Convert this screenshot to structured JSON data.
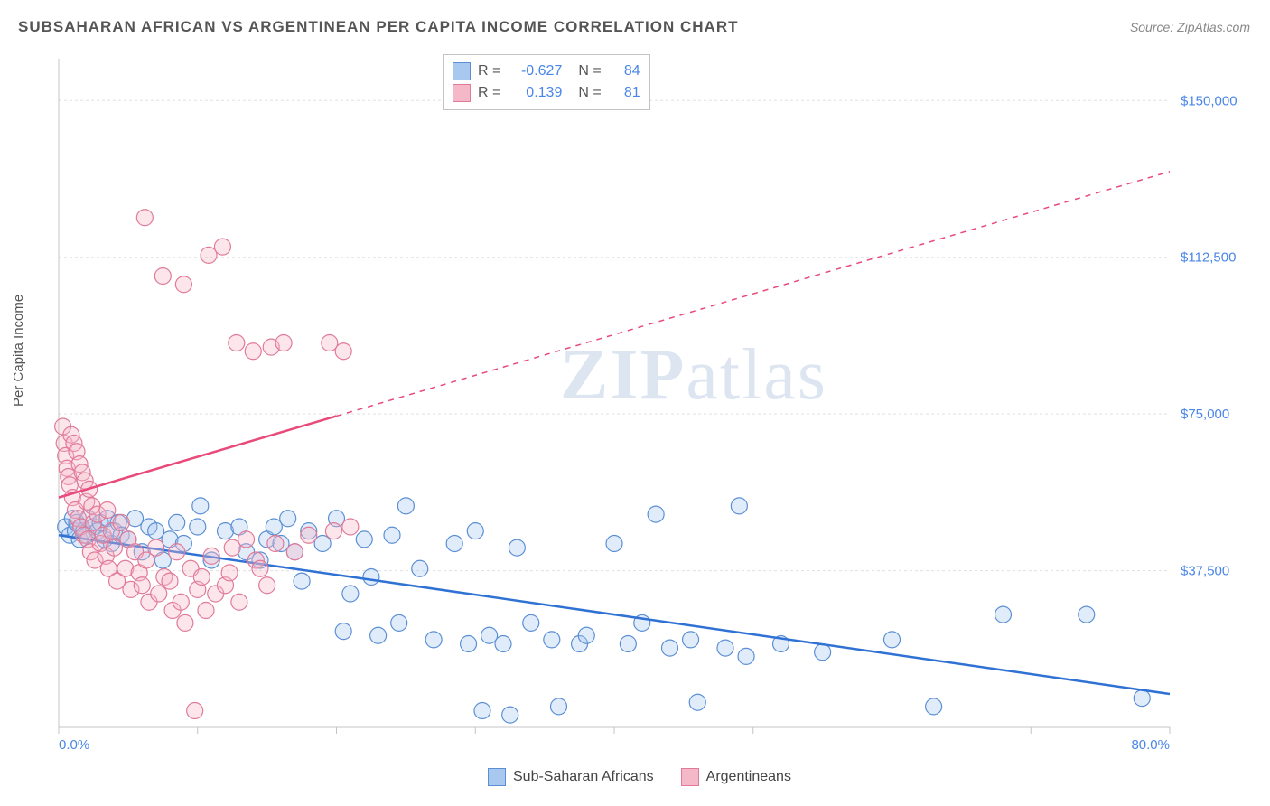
{
  "title": "SUBSAHARAN AFRICAN VS ARGENTINEAN PER CAPITA INCOME CORRELATION CHART",
  "source": "Source: ZipAtlas.com",
  "ylabel": "Per Capita Income",
  "watermark_left": "ZIP",
  "watermark_right": "atlas",
  "chart": {
    "type": "scatter",
    "background_color": "#ffffff",
    "grid_color": "#e0e0e0",
    "axis_color": "#c4c4c4",
    "tick_color": "#c4c4c4",
    "label_color": "#4a86e8",
    "title_color": "#555555",
    "title_fontsize": 17,
    "label_fontsize": 15,
    "xlim": [
      0,
      80
    ],
    "ylim": [
      0,
      160000
    ],
    "x_tick_positions": [
      0,
      10,
      20,
      30,
      40,
      50,
      60,
      70,
      80
    ],
    "x_tick_labels_shown": {
      "0": "0.0%",
      "80": "80.0%"
    },
    "y_tick_positions": [
      37500,
      75000,
      112500,
      150000
    ],
    "y_tick_labels": [
      "$37,500",
      "$75,000",
      "$112,500",
      "$150,000"
    ],
    "marker_radius": 9,
    "marker_fill_opacity": 0.35,
    "marker_stroke_width": 1.2,
    "trend_line_width": 2.5,
    "trend_dash_pattern": "6,6"
  },
  "series": [
    {
      "name": "Sub-Saharan Africans",
      "color_fill": "#a8c8f0",
      "color_stroke": "#5b8fd4",
      "trend_color": "#2f72d4",
      "R": "-0.627",
      "N": "84",
      "trend": {
        "x1": 0,
        "y1": 46000,
        "x2": 80,
        "y2": 8000,
        "dash_after_x": null
      },
      "points": [
        [
          0.5,
          48000
        ],
        [
          0.8,
          46000
        ],
        [
          1.0,
          50000
        ],
        [
          1.2,
          47000
        ],
        [
          1.3,
          49000
        ],
        [
          1.5,
          45000
        ],
        [
          1.6,
          48000
        ],
        [
          1.8,
          47000
        ],
        [
          2.0,
          46000
        ],
        [
          2.1,
          50000
        ],
        [
          2.5,
          48000
        ],
        [
          2.8,
          47000
        ],
        [
          3.0,
          49000
        ],
        [
          3.3,
          45000
        ],
        [
          3.5,
          50000
        ],
        [
          3.8,
          44000
        ],
        [
          4.0,
          47000
        ],
        [
          4.3,
          49000
        ],
        [
          4.5,
          46000
        ],
        [
          5.0,
          45000
        ],
        [
          5.5,
          50000
        ],
        [
          6.0,
          42000
        ],
        [
          6.5,
          48000
        ],
        [
          7.0,
          47000
        ],
        [
          7.5,
          40000
        ],
        [
          8.0,
          45000
        ],
        [
          8.5,
          49000
        ],
        [
          9.0,
          44000
        ],
        [
          10.0,
          48000
        ],
        [
          10.2,
          53000
        ],
        [
          11.0,
          40000
        ],
        [
          12.0,
          47000
        ],
        [
          13.0,
          48000
        ],
        [
          13.5,
          42000
        ],
        [
          14.5,
          40000
        ],
        [
          15.0,
          45000
        ],
        [
          15.5,
          48000
        ],
        [
          16.0,
          44000
        ],
        [
          16.5,
          50000
        ],
        [
          17.0,
          42000
        ],
        [
          17.5,
          35000
        ],
        [
          18.0,
          47000
        ],
        [
          19.0,
          44000
        ],
        [
          20.0,
          50000
        ],
        [
          20.5,
          23000
        ],
        [
          21.0,
          32000
        ],
        [
          22.0,
          45000
        ],
        [
          22.5,
          36000
        ],
        [
          23.0,
          22000
        ],
        [
          24.0,
          46000
        ],
        [
          24.5,
          25000
        ],
        [
          25.0,
          53000
        ],
        [
          26.0,
          38000
        ],
        [
          27.0,
          21000
        ],
        [
          28.5,
          44000
        ],
        [
          29.5,
          20000
        ],
        [
          30.0,
          47000
        ],
        [
          30.5,
          4000
        ],
        [
          31.0,
          22000
        ],
        [
          32.0,
          20000
        ],
        [
          32.5,
          3000
        ],
        [
          33.0,
          43000
        ],
        [
          34.0,
          25000
        ],
        [
          35.5,
          21000
        ],
        [
          36.0,
          5000
        ],
        [
          37.5,
          20000
        ],
        [
          38.0,
          22000
        ],
        [
          40.0,
          44000
        ],
        [
          41.0,
          20000
        ],
        [
          42.0,
          25000
        ],
        [
          43.0,
          51000
        ],
        [
          44.0,
          19000
        ],
        [
          45.5,
          21000
        ],
        [
          46.0,
          6000
        ],
        [
          48.0,
          19000
        ],
        [
          49.5,
          17000
        ],
        [
          49.0,
          53000
        ],
        [
          52.0,
          20000
        ],
        [
          55.0,
          18000
        ],
        [
          60.0,
          21000
        ],
        [
          63.0,
          5000
        ],
        [
          68.0,
          27000
        ],
        [
          74.0,
          27000
        ],
        [
          78.0,
          7000
        ]
      ]
    },
    {
      "name": "Argentineans",
      "color_fill": "#f5b8c8",
      "color_stroke": "#e07a98",
      "trend_color": "#e84a7a",
      "R": "0.139",
      "N": "81",
      "trend": {
        "x1": 0,
        "y1": 55000,
        "x2": 80,
        "y2": 133000,
        "dash_after_x": 20
      },
      "points": [
        [
          0.3,
          72000
        ],
        [
          0.4,
          68000
        ],
        [
          0.5,
          65000
        ],
        [
          0.6,
          62000
        ],
        [
          0.7,
          60000
        ],
        [
          0.8,
          58000
        ],
        [
          0.9,
          70000
        ],
        [
          1.0,
          55000
        ],
        [
          1.1,
          68000
        ],
        [
          1.2,
          52000
        ],
        [
          1.3,
          66000
        ],
        [
          1.4,
          50000
        ],
        [
          1.5,
          63000
        ],
        [
          1.6,
          48000
        ],
        [
          1.7,
          61000
        ],
        [
          1.8,
          46000
        ],
        [
          1.9,
          59000
        ],
        [
          2.0,
          54000
        ],
        [
          2.1,
          45000
        ],
        [
          2.2,
          57000
        ],
        [
          2.3,
          42000
        ],
        [
          2.4,
          53000
        ],
        [
          2.5,
          49000
        ],
        [
          2.6,
          40000
        ],
        [
          2.8,
          51000
        ],
        [
          3.0,
          44000
        ],
        [
          3.2,
          46000
        ],
        [
          3.4,
          41000
        ],
        [
          3.5,
          52000
        ],
        [
          3.6,
          38000
        ],
        [
          3.8,
          47000
        ],
        [
          4.0,
          43000
        ],
        [
          4.2,
          35000
        ],
        [
          4.5,
          49000
        ],
        [
          4.8,
          38000
        ],
        [
          5.0,
          45000
        ],
        [
          5.2,
          33000
        ],
        [
          5.5,
          42000
        ],
        [
          5.8,
          37000
        ],
        [
          6.0,
          34000
        ],
        [
          6.2,
          122000
        ],
        [
          6.3,
          40000
        ],
        [
          6.5,
          30000
        ],
        [
          7.0,
          43000
        ],
        [
          7.2,
          32000
        ],
        [
          7.5,
          108000
        ],
        [
          7.6,
          36000
        ],
        [
          8.0,
          35000
        ],
        [
          8.2,
          28000
        ],
        [
          8.5,
          42000
        ],
        [
          8.8,
          30000
        ],
        [
          9.0,
          106000
        ],
        [
          9.1,
          25000
        ],
        [
          9.5,
          38000
        ],
        [
          9.8,
          4000
        ],
        [
          10.0,
          33000
        ],
        [
          10.3,
          36000
        ],
        [
          10.6,
          28000
        ],
        [
          10.8,
          113000
        ],
        [
          11.0,
          41000
        ],
        [
          11.3,
          32000
        ],
        [
          11.8,
          115000
        ],
        [
          12.0,
          34000
        ],
        [
          12.3,
          37000
        ],
        [
          12.5,
          43000
        ],
        [
          12.8,
          92000
        ],
        [
          13.0,
          30000
        ],
        [
          13.5,
          45000
        ],
        [
          14.0,
          90000
        ],
        [
          14.2,
          40000
        ],
        [
          14.5,
          38000
        ],
        [
          15.0,
          34000
        ],
        [
          15.3,
          91000
        ],
        [
          15.6,
          44000
        ],
        [
          16.2,
          92000
        ],
        [
          17.0,
          42000
        ],
        [
          18.0,
          46000
        ],
        [
          19.5,
          92000
        ],
        [
          19.8,
          47000
        ],
        [
          20.5,
          90000
        ],
        [
          21.0,
          48000
        ]
      ]
    }
  ],
  "legend_bottom": [
    {
      "label": "Sub-Saharan Africans",
      "fill": "#a8c8f0",
      "stroke": "#5b8fd4"
    },
    {
      "label": "Argentineans",
      "fill": "#f5b8c8",
      "stroke": "#e07a98"
    }
  ],
  "stats_box": {
    "rows": [
      {
        "fill": "#a8c8f0",
        "stroke": "#5b8fd4",
        "R_label": "R =",
        "R": "-0.627",
        "N_label": "N =",
        "N": "84"
      },
      {
        "fill": "#f5b8c8",
        "stroke": "#e07a98",
        "R_label": "R =",
        "R": "0.139",
        "N_label": "N =",
        "N": "81"
      }
    ]
  }
}
